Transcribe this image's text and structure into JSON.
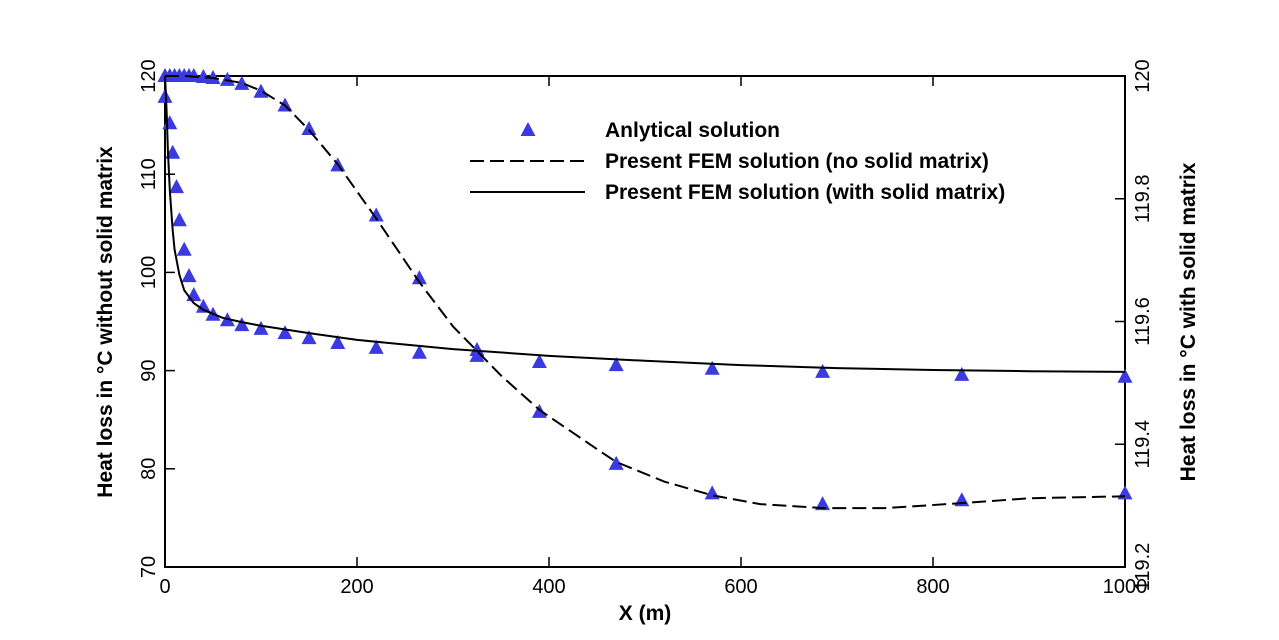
{
  "chart_data": {
    "type": "line",
    "xlabel": "X (m)",
    "ylabel": "Heat loss in °C without solid matrix",
    "y2label": "Heat loss in °C with solid matrix",
    "xlim": [
      0,
      1000
    ],
    "xticks": [
      0,
      200,
      400,
      600,
      800,
      1000
    ],
    "ylim": [
      70,
      120
    ],
    "yticks": [
      70,
      80,
      90,
      100,
      110,
      120
    ],
    "y2lim": [
      119.2,
      120
    ],
    "y2ticks": [
      119.2,
      119.4,
      119.6,
      119.8,
      120
    ],
    "legend": "upper center",
    "series": [
      {
        "name": "Anlytical solution",
        "kind": "markers",
        "color": "#3a3ae0",
        "groups": [
          {
            "axis": "y",
            "x": [
              0,
              5,
              10,
              15,
              20,
              25,
              30,
              40,
              50,
              65,
              80,
              100,
              125,
              150,
              180,
              220,
              265,
              325,
              390,
              470,
              570,
              685,
              830,
              1000
            ],
            "values": [
              120,
              120,
              120,
              120,
              120,
              120,
              120,
              119.9,
              119.8,
              119.6,
              119.2,
              118.4,
              117,
              114.6,
              110.9,
              105.8,
              99.4,
              92.1,
              85.8,
              80.5,
              77.5,
              76.4,
              76.8,
              77.5
            ]
          },
          {
            "axis": "y2",
            "x": [
              0,
              5,
              8,
              12,
              15,
              20,
              25,
              30,
              40,
              50,
              65,
              80,
              100,
              125,
              150,
              180,
              220,
              265,
              325,
              390,
              470,
              570,
              685,
              830,
              1000
            ],
            "values": [
              119.966,
              119.923,
              119.875,
              119.819,
              119.765,
              119.717,
              119.674,
              119.643,
              119.624,
              119.611,
              119.602,
              119.594,
              119.588,
              119.581,
              119.573,
              119.565,
              119.557,
              119.549,
              119.544,
              119.534,
              119.529,
              119.523,
              119.518,
              119.513,
              119.51
            ]
          }
        ]
      },
      {
        "name": "Present FEM solution (no solid matrix)",
        "kind": "dashed",
        "color": "#000000",
        "axis": "y",
        "x": [
          0,
          20,
          50,
          80,
          100,
          125,
          150,
          180,
          220,
          265,
          300,
          325,
          350,
          390,
          450,
          470,
          520,
          570,
          620,
          685,
          750,
          830,
          900,
          1000
        ],
        "values": [
          120,
          120,
          119.8,
          119.3,
          118.5,
          117,
          114.5,
          111,
          105.5,
          99,
          94.5,
          92,
          89.5,
          86,
          82,
          80.7,
          78.7,
          77.3,
          76.4,
          76,
          76,
          76.5,
          77,
          77.2
        ]
      },
      {
        "name": "Present FEM solution (with solid matrix)",
        "kind": "solid",
        "color": "#000000",
        "axis": "y2",
        "x": [
          0,
          1,
          2,
          3,
          5,
          8,
          10,
          15,
          20,
          30,
          40,
          60,
          80,
          100,
          150,
          200,
          300,
          400,
          500,
          600,
          700,
          800,
          900,
          1000
        ],
        "values": [
          120,
          119.969,
          119.928,
          119.879,
          119.814,
          119.749,
          119.717,
          119.676,
          119.651,
          119.63,
          119.619,
          119.606,
          119.599,
          119.593,
          119.581,
          119.57,
          119.555,
          119.544,
          119.536,
          119.529,
          119.524,
          119.521,
          119.519,
          119.518
        ]
      }
    ]
  }
}
